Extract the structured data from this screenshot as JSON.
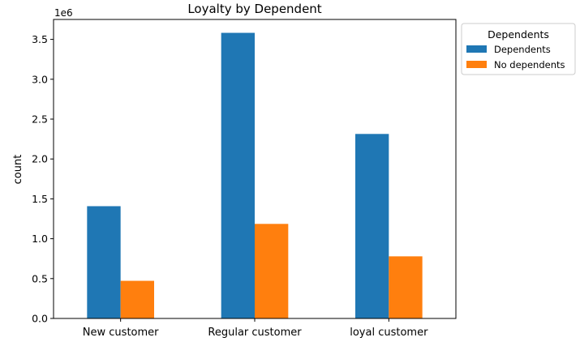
{
  "chart_data": {
    "type": "bar",
    "title": "Loyalty by Dependent",
    "xlabel": "",
    "ylabel": "count",
    "offset_label": "1e6",
    "categories": [
      "New customer",
      "Regular customer",
      "loyal customer"
    ],
    "series": [
      {
        "name": "Dependents",
        "color": "#1f77b4",
        "values": [
          1408000,
          3582000,
          2314000
        ]
      },
      {
        "name": "No dependents",
        "color": "#ff7f0e",
        "values": [
          472000,
          1186000,
          779000
        ]
      }
    ],
    "ylim": [
      0,
      3750000
    ],
    "y_ticks": [
      0,
      500000,
      1000000,
      1500000,
      2000000,
      2500000,
      3000000,
      3500000
    ],
    "y_tick_labels": [
      "0.0",
      "0.5",
      "1.0",
      "1.5",
      "2.0",
      "2.5",
      "3.0",
      "3.5"
    ],
    "grid": false,
    "legend": {
      "title": "Dependents",
      "placement": "outside-top-right"
    }
  }
}
